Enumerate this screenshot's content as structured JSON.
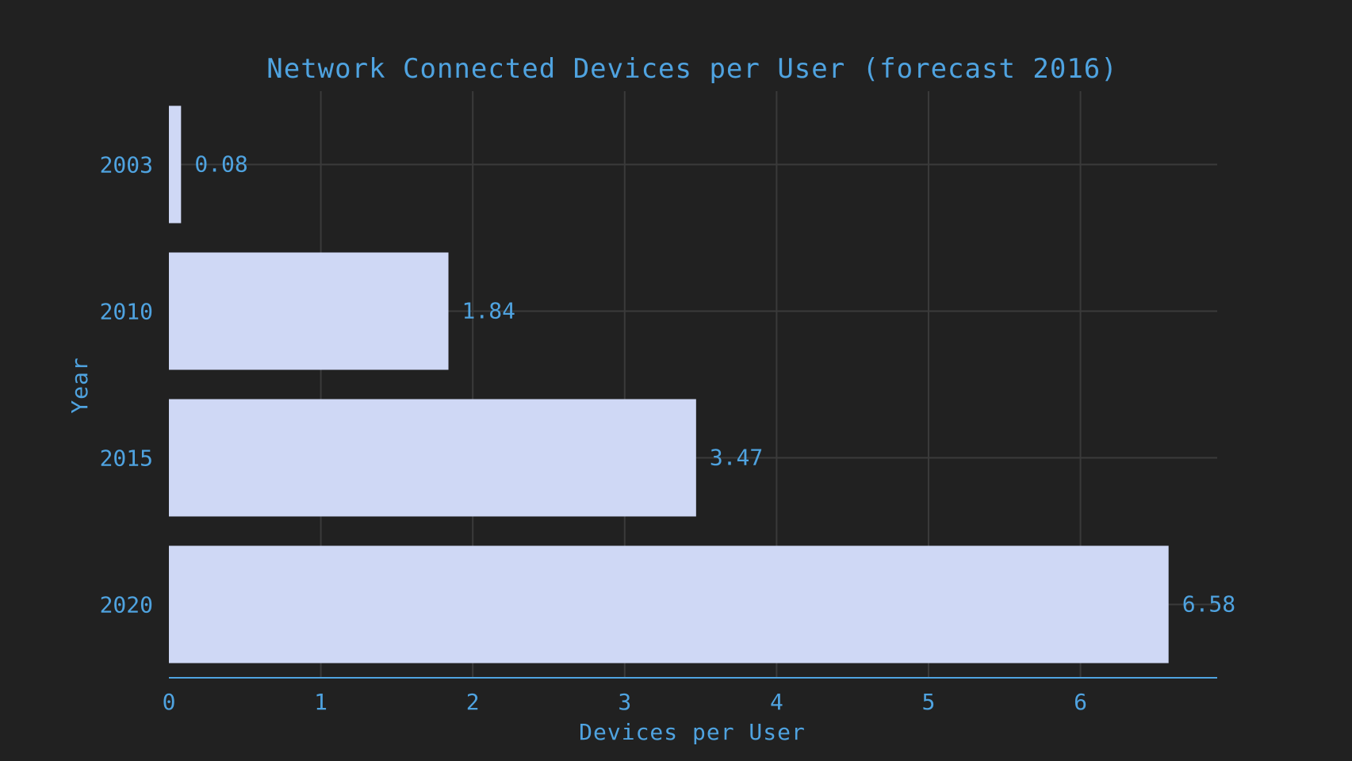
{
  "chart_data": {
    "type": "bar",
    "orientation": "horizontal",
    "title": "Network Connected Devices per User (forecast 2016)",
    "xlabel": "Devices per User",
    "ylabel": "Year",
    "categories": [
      "2003",
      "2010",
      "2015",
      "2020"
    ],
    "values": [
      0.08,
      1.84,
      3.47,
      6.58
    ],
    "value_labels": [
      "0.08",
      "1.84",
      "3.47",
      "6.58"
    ],
    "xlim": [
      0,
      6.9
    ],
    "xticks": [
      "0",
      "1",
      "2",
      "3",
      "4",
      "5",
      "6"
    ],
    "grid": true,
    "legend": "none"
  },
  "colors": {
    "background": "#212121",
    "bar": "#cfd8f5",
    "text": "#4fa3e0",
    "grid": "#3a3a3a",
    "axis": "#4fa3e0"
  }
}
